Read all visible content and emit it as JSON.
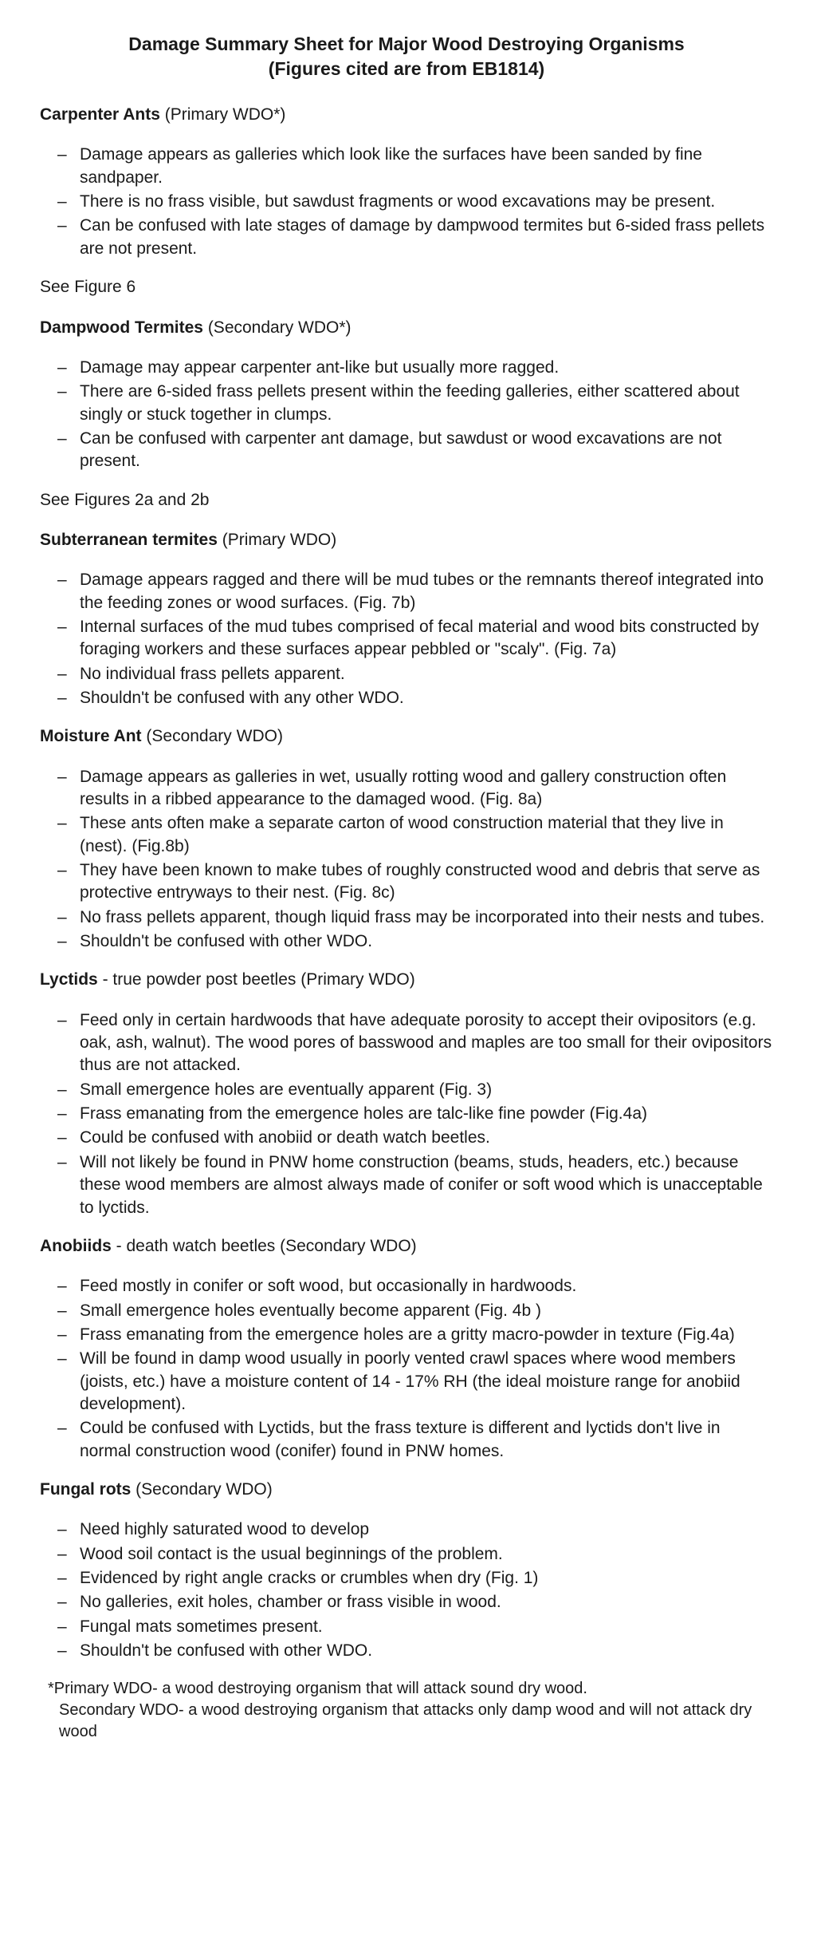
{
  "title": {
    "line1": "Damage Summary Sheet for Major Wood Destroying Organisms",
    "line2": "(Figures cited are from EB1814)"
  },
  "sections": [
    {
      "org": "Carpenter Ants",
      "qualifier": " (Primary WDO*)",
      "bullets": [
        "Damage appears as galleries which look like the surfaces have been sanded by fine sandpaper.",
        "There is no frass visible, but sawdust fragments or wood excavations may be present.",
        "Can be confused with late stages of damage by dampwood termites but 6-sided frass pellets are not present."
      ],
      "see": "See Figure 6"
    },
    {
      "org": "Dampwood Termites",
      "qualifier": " (Secondary WDO*)",
      "bullets": [
        "Damage may appear carpenter ant-like but usually more ragged.",
        "There are 6-sided frass pellets present within the feeding galleries, either scattered about singly or stuck together in clumps.",
        "Can be confused with carpenter ant damage, but sawdust or wood excavations are not present."
      ],
      "see": "See Figures 2a and 2b"
    },
    {
      "org": "Subterranean termites",
      "qualifier": " (Primary WDO)",
      "bullets": [
        "Damage appears ragged and there will be mud tubes or the remnants thereof integrated into the feeding zones or wood surfaces. (Fig. 7b)",
        "Internal surfaces of the mud tubes comprised of fecal material and wood bits constructed by foraging workers and these surfaces appear pebbled or \"scaly\". (Fig. 7a)",
        "No individual frass pellets apparent.",
        "Shouldn't be confused with any other WDO."
      ],
      "see": ""
    },
    {
      "org": "Moisture Ant",
      "qualifier": " (Secondary WDO)",
      "bullets": [
        "Damage appears as galleries in wet, usually rotting wood and gallery construction often results in a ribbed appearance to the damaged wood. (Fig. 8a)",
        "These ants often make a separate carton of wood construction material that they live in (nest). (Fig.8b)",
        "They have been known to make tubes of roughly constructed wood and debris that serve as protective entryways to their nest. (Fig. 8c)",
        "No frass pellets apparent, though liquid frass may be incorporated into their nests and tubes.",
        "Shouldn't be confused with other WDO."
      ],
      "see": ""
    },
    {
      "org": "Lyctids",
      "qualifier": " - true powder post beetles (Primary WDO)",
      "bullets": [
        "Feed only in certain hardwoods that have adequate porosity to accept their ovipositors (e.g. oak, ash, walnut).  The wood pores of basswood and maples are too small for their ovipositors thus are not attacked.",
        "Small emergence holes are eventually apparent (Fig. 3)",
        "Frass emanating from the emergence holes are talc-like fine powder (Fig.4a)",
        "Could be confused with anobiid or death watch beetles.",
        "Will not likely be found in PNW home construction (beams, studs, headers, etc.) because these wood members are almost always made of conifer or soft wood which is unacceptable to lyctids."
      ],
      "see": ""
    },
    {
      "org": "Anobiids",
      "qualifier": " - death watch beetles (Secondary WDO)",
      "bullets": [
        "Feed mostly in conifer or soft wood, but occasionally in hardwoods.",
        "Small emergence holes eventually become apparent (Fig. 4b )",
        "Frass emanating from the emergence holes are a gritty macro-powder in texture (Fig.4a)",
        "Will be found in damp wood usually in poorly vented crawl spaces where wood members (joists, etc.) have a moisture content of 14 - 17% RH (the ideal moisture range for anobiid development).",
        "Could be confused with Lyctids, but the frass texture is different and lyctids don't live in normal construction wood (conifer) found in PNW homes."
      ],
      "see": ""
    },
    {
      "org": "Fungal rots",
      "qualifier": " (Secondary WDO)",
      "bullets": [
        "Need highly saturated wood to develop",
        "Wood soil contact is the usual beginnings of the problem.",
        "Evidenced by right angle cracks or crumbles when dry (Fig. 1)",
        "No galleries, exit holes, chamber or frass visible in wood.",
        "Fungal mats sometimes present.",
        "Shouldn't be confused with other WDO."
      ],
      "see": ""
    }
  ],
  "footnote": {
    "line1": "*Primary WDO- a wood destroying organism that will attack sound dry wood.",
    "line2": "Secondary WDO- a wood destroying organism that attacks only damp wood and will not attack dry wood"
  }
}
